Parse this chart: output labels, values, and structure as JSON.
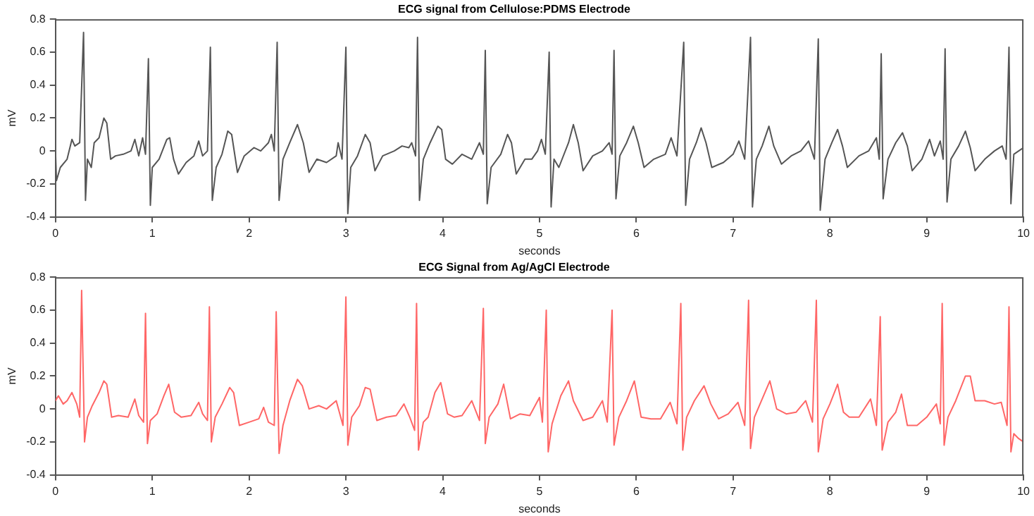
{
  "chart_data": [
    {
      "type": "line",
      "title": "ECG signal from Cellulose:PDMS Electrode",
      "xlabel": "seconds",
      "ylabel": "mV",
      "xlim": [
        0,
        10
      ],
      "xticks": [
        0,
        1,
        2,
        3,
        4,
        5,
        6,
        7,
        8,
        9,
        10
      ],
      "ylim": [
        -0.4,
        0.8
      ],
      "yticks": [
        -0.4,
        -0.2,
        0,
        0.2,
        0.4,
        0.6,
        0.8
      ],
      "grid": false,
      "legend": false,
      "series": [
        {
          "color": "#555555",
          "x": [
            0,
            0.01,
            0.05,
            0.12,
            0.17,
            0.2,
            0.25,
            0.29,
            0.31,
            0.33,
            0.37,
            0.4,
            0.45,
            0.5,
            0.53,
            0.57,
            0.62,
            0.7,
            0.78,
            0.82,
            0.86,
            0.9,
            0.93,
            0.96,
            0.98,
            1.0,
            1.07,
            1.15,
            1.18,
            1.22,
            1.27,
            1.35,
            1.43,
            1.48,
            1.52,
            1.57,
            1.6,
            1.62,
            1.66,
            1.72,
            1.78,
            1.82,
            1.88,
            1.95,
            2.05,
            2.12,
            2.2,
            2.23,
            2.26,
            2.29,
            2.31,
            2.35,
            2.42,
            2.5,
            2.56,
            2.62,
            2.7,
            2.8,
            2.9,
            2.92,
            2.96,
            3.0,
            3.02,
            3.05,
            3.12,
            3.2,
            3.25,
            3.3,
            3.38,
            3.5,
            3.58,
            3.65,
            3.68,
            3.72,
            3.74,
            3.76,
            3.8,
            3.87,
            3.95,
            3.99,
            4.03,
            4.1,
            4.2,
            4.3,
            4.38,
            4.42,
            4.44,
            4.46,
            4.5,
            4.6,
            4.67,
            4.71,
            4.76,
            4.85,
            4.92,
            4.98,
            5.02,
            5.06,
            5.1,
            5.12,
            5.15,
            5.2,
            5.3,
            5.35,
            5.4,
            5.45,
            5.55,
            5.65,
            5.72,
            5.75,
            5.77,
            5.79,
            5.83,
            5.9,
            5.97,
            6.02,
            6.08,
            6.18,
            6.3,
            6.36,
            6.42,
            6.49,
            6.51,
            6.55,
            6.62,
            6.67,
            6.72,
            6.78,
            6.9,
            7.0,
            7.06,
            7.12,
            7.18,
            7.2,
            7.24,
            7.3,
            7.37,
            7.42,
            7.5,
            7.6,
            7.7,
            7.78,
            7.84,
            7.88,
            7.9,
            7.95,
            8.02,
            8.08,
            8.13,
            8.18,
            8.3,
            8.4,
            8.48,
            8.51,
            8.53,
            8.55,
            8.6,
            8.68,
            8.75,
            8.8,
            8.85,
            8.95,
            9.03,
            9.08,
            9.14,
            9.17,
            9.19,
            9.21,
            9.25,
            9.33,
            9.4,
            9.45,
            9.5,
            9.6,
            9.7,
            9.78,
            9.82,
            9.85,
            9.87,
            9.9,
            9.95,
            10
          ],
          "values": [
            0,
            -0.18,
            -0.1,
            -0.05,
            0.07,
            0.03,
            0.05,
            0.72,
            -0.3,
            -0.05,
            -0.1,
            0.05,
            0.08,
            0.2,
            0.17,
            -0.05,
            -0.03,
            -0.02,
            0,
            0.07,
            -0.03,
            0.08,
            -0.02,
            0.56,
            -0.33,
            -0.1,
            -0.05,
            0.07,
            0.08,
            -0.05,
            -0.14,
            -0.07,
            -0.03,
            0.06,
            -0.03,
            0,
            0.63,
            -0.3,
            -0.1,
            -0.02,
            0.12,
            0.1,
            -0.13,
            -0.03,
            0.02,
            0,
            0.05,
            0.1,
            0,
            0.66,
            -0.3,
            -0.05,
            0.05,
            0.16,
            0.05,
            -0.13,
            -0.05,
            -0.07,
            -0.03,
            0.05,
            -0.05,
            0.63,
            -0.38,
            -0.1,
            -0.03,
            0.1,
            0.05,
            -0.12,
            -0.03,
            0,
            0.03,
            0.02,
            0.05,
            -0.03,
            0.69,
            -0.3,
            -0.05,
            0.05,
            0.15,
            0.13,
            -0.05,
            -0.08,
            -0.02,
            -0.05,
            0.05,
            -0.02,
            0.61,
            -0.32,
            -0.1,
            -0.02,
            0.1,
            0.05,
            -0.14,
            -0.05,
            -0.05,
            0,
            0.07,
            -0.02,
            0.6,
            -0.34,
            -0.05,
            -0.1,
            0.05,
            0.16,
            0.05,
            -0.12,
            -0.03,
            0,
            0.05,
            -0.02,
            0.61,
            -0.29,
            -0.03,
            0.05,
            0.15,
            0.05,
            -0.1,
            -0.05,
            -0.02,
            0.08,
            -0.03,
            0.66,
            -0.33,
            -0.05,
            0.05,
            0.14,
            0.05,
            -0.1,
            -0.07,
            -0.02,
            0.06,
            -0.05,
            0.69,
            -0.34,
            -0.05,
            0.03,
            0.15,
            0.03,
            -0.08,
            -0.03,
            0,
            0.06,
            -0.05,
            0.68,
            -0.36,
            -0.05,
            0.05,
            0.13,
            0.03,
            -0.1,
            -0.03,
            0,
            0.08,
            -0.05,
            0.59,
            -0.29,
            -0.05,
            0.05,
            0.11,
            0.03,
            -0.12,
            -0.05,
            0.07,
            -0.03,
            0.06,
            -0.05,
            0.62,
            -0.31,
            -0.05,
            0.03,
            0.12,
            0.02,
            -0.12,
            -0.05,
            0,
            0.03,
            -0.05,
            0.63,
            -0.32,
            -0.02,
            0,
            0.02
          ]
        }
      ]
    },
    {
      "type": "line",
      "title": "ECG Signal from Ag/AgCl Electrode",
      "xlabel": "seconds",
      "ylabel": "mV",
      "xlim": [
        0,
        10
      ],
      "xticks": [
        0,
        1,
        2,
        3,
        4,
        5,
        6,
        7,
        8,
        9,
        10
      ],
      "ylim": [
        -0.4,
        0.8
      ],
      "yticks": [
        -0.4,
        -0.2,
        0,
        0.2,
        0.4,
        0.6,
        0.8
      ],
      "grid": false,
      "legend": false,
      "series": [
        {
          "color": "#ff6666",
          "x": [
            0,
            0.03,
            0.08,
            0.12,
            0.17,
            0.22,
            0.25,
            0.27,
            0.3,
            0.33,
            0.38,
            0.45,
            0.5,
            0.53,
            0.58,
            0.65,
            0.75,
            0.82,
            0.86,
            0.91,
            0.93,
            0.95,
            0.98,
            1.05,
            1.12,
            1.17,
            1.23,
            1.3,
            1.4,
            1.48,
            1.52,
            1.57,
            1.59,
            1.61,
            1.65,
            1.72,
            1.8,
            1.84,
            1.9,
            2.0,
            2.1,
            2.15,
            2.2,
            2.26,
            2.28,
            2.31,
            2.35,
            2.42,
            2.5,
            2.55,
            2.62,
            2.72,
            2.8,
            2.9,
            2.97,
            3.0,
            3.02,
            3.06,
            3.14,
            3.2,
            3.25,
            3.32,
            3.42,
            3.52,
            3.6,
            3.66,
            3.71,
            3.73,
            3.75,
            3.8,
            3.85,
            3.92,
            3.98,
            4.05,
            4.12,
            4.2,
            4.3,
            4.38,
            4.42,
            4.44,
            4.48,
            4.57,
            4.63,
            4.7,
            4.8,
            4.9,
            5.0,
            5.03,
            5.07,
            5.09,
            5.13,
            5.22,
            5.3,
            5.35,
            5.45,
            5.55,
            5.65,
            5.7,
            5.75,
            5.77,
            5.82,
            5.9,
            5.98,
            6.05,
            6.15,
            6.25,
            6.35,
            6.42,
            6.46,
            6.48,
            6.52,
            6.6,
            6.7,
            6.77,
            6.85,
            6.95,
            7.05,
            7.12,
            7.16,
            7.18,
            7.22,
            7.3,
            7.38,
            7.45,
            7.55,
            7.65,
            7.75,
            7.82,
            7.86,
            7.88,
            7.93,
            8.0,
            8.08,
            8.14,
            8.2,
            8.3,
            8.42,
            8.48,
            8.52,
            8.54,
            8.6,
            8.68,
            8.74,
            8.8,
            8.9,
            9.0,
            9.1,
            9.14,
            9.16,
            9.18,
            9.22,
            9.3,
            9.4,
            9.45,
            9.5,
            9.6,
            9.7,
            9.77,
            9.83,
            9.85,
            9.87,
            9.9,
            9.95,
            10
          ],
          "values": [
            0.05,
            0.08,
            0.03,
            0.05,
            0.1,
            0.03,
            -0.05,
            0.72,
            -0.2,
            -0.05,
            0.02,
            0.1,
            0.17,
            0.15,
            -0.05,
            -0.04,
            -0.05,
            0.06,
            -0.04,
            -0.08,
            0.58,
            -0.21,
            -0.07,
            -0.03,
            0.08,
            0.15,
            -0.02,
            -0.05,
            -0.04,
            0.04,
            -0.03,
            -0.07,
            0.62,
            -0.2,
            -0.05,
            0.03,
            0.13,
            0.1,
            -0.1,
            -0.08,
            -0.06,
            0.01,
            -0.08,
            -0.1,
            0.59,
            -0.27,
            -0.1,
            0.05,
            0.18,
            0.14,
            0,
            0.02,
            0,
            0.05,
            -0.1,
            0.68,
            -0.22,
            -0.05,
            0.02,
            0.13,
            0.12,
            -0.07,
            -0.05,
            -0.04,
            0.03,
            -0.05,
            -0.13,
            0.64,
            -0.25,
            -0.08,
            -0.05,
            0.1,
            0.16,
            -0.03,
            -0.05,
            -0.04,
            0.05,
            -0.07,
            0.61,
            -0.21,
            -0.05,
            0.03,
            0.15,
            -0.06,
            -0.03,
            -0.04,
            0.07,
            -0.08,
            0.6,
            -0.26,
            -0.09,
            0.08,
            0.17,
            0.05,
            -0.07,
            -0.05,
            0.05,
            -0.08,
            0.6,
            -0.22,
            -0.05,
            0.05,
            0.17,
            -0.05,
            -0.06,
            -0.06,
            0.04,
            -0.09,
            0.64,
            -0.25,
            -0.05,
            0.05,
            0.14,
            0.03,
            -0.06,
            -0.03,
            0.04,
            -0.1,
            0.66,
            -0.24,
            -0.05,
            0.06,
            0.17,
            0,
            -0.03,
            -0.02,
            0.05,
            -0.08,
            0.66,
            -0.26,
            -0.06,
            0.03,
            0.15,
            -0.02,
            -0.05,
            -0.05,
            0.06,
            -0.1,
            0.56,
            -0.25,
            -0.08,
            -0.02,
            0.09,
            -0.1,
            -0.1,
            -0.05,
            0.03,
            -0.09,
            0.64,
            -0.22,
            -0.05,
            0.05,
            0.2,
            0.2,
            0.05,
            0.05,
            0.03,
            0.04,
            -0.1,
            0.62,
            -0.26,
            -0.15,
            -0.18,
            -0.2
          ]
        }
      ]
    }
  ]
}
